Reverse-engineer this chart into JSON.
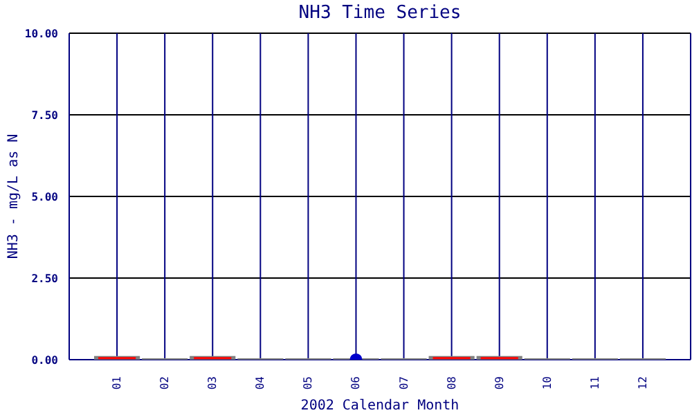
{
  "chart_data": {
    "type": "box",
    "title": "NH3 Time Series",
    "xlabel": "2002 Calendar Month",
    "ylabel": "NH3 - mg/L as N",
    "categories": [
      "01",
      "02",
      "03",
      "04",
      "05",
      "06",
      "07",
      "08",
      "09",
      "10",
      "11",
      "12"
    ],
    "ylim": [
      0,
      10
    ],
    "yticks": [
      {
        "value": 0,
        "label": "0.00"
      },
      {
        "value": 2.5,
        "label": "2.50"
      },
      {
        "value": 5,
        "label": "5.00"
      },
      {
        "value": 7.5,
        "label": "7.50"
      },
      {
        "value": 10,
        "label": "10.00"
      }
    ],
    "grid": true,
    "series": [
      {
        "type": "box",
        "color": "#808080",
        "boxes": [
          {
            "low": 0,
            "q1": 0,
            "median": 0.05,
            "q3": 0.07,
            "high": 0.07
          },
          {
            "low": 0,
            "q1": 0,
            "median": 0,
            "q3": 0,
            "high": 0
          },
          {
            "low": 0,
            "q1": 0,
            "median": 0.05,
            "q3": 0.07,
            "high": 0.07
          },
          {
            "low": 0,
            "q1": 0,
            "median": 0,
            "q3": 0,
            "high": 0
          },
          {
            "low": 0,
            "q1": 0,
            "median": 0,
            "q3": 0,
            "high": 0
          },
          {
            "low": 0,
            "q1": 0,
            "median": 0,
            "q3": 0,
            "high": 0
          },
          {
            "low": 0,
            "q1": 0,
            "median": 0,
            "q3": 0,
            "high": 0
          },
          {
            "low": 0,
            "q1": 0,
            "median": 0.05,
            "q3": 0.07,
            "high": 0.07
          },
          {
            "low": 0,
            "q1": 0,
            "median": 0.05,
            "q3": 0.07,
            "high": 0.07
          },
          {
            "low": 0,
            "q1": 0,
            "median": 0,
            "q3": 0,
            "high": 0
          },
          {
            "low": 0,
            "q1": 0,
            "median": 0,
            "q3": 0,
            "high": 0
          },
          {
            "low": 0,
            "q1": 0,
            "median": 0,
            "q3": 0,
            "high": 0
          }
        ]
      },
      {
        "type": "scatter",
        "x": [
          "06"
        ],
        "values": [
          0
        ],
        "color": "#0000cc",
        "marker": "circle"
      }
    ]
  }
}
